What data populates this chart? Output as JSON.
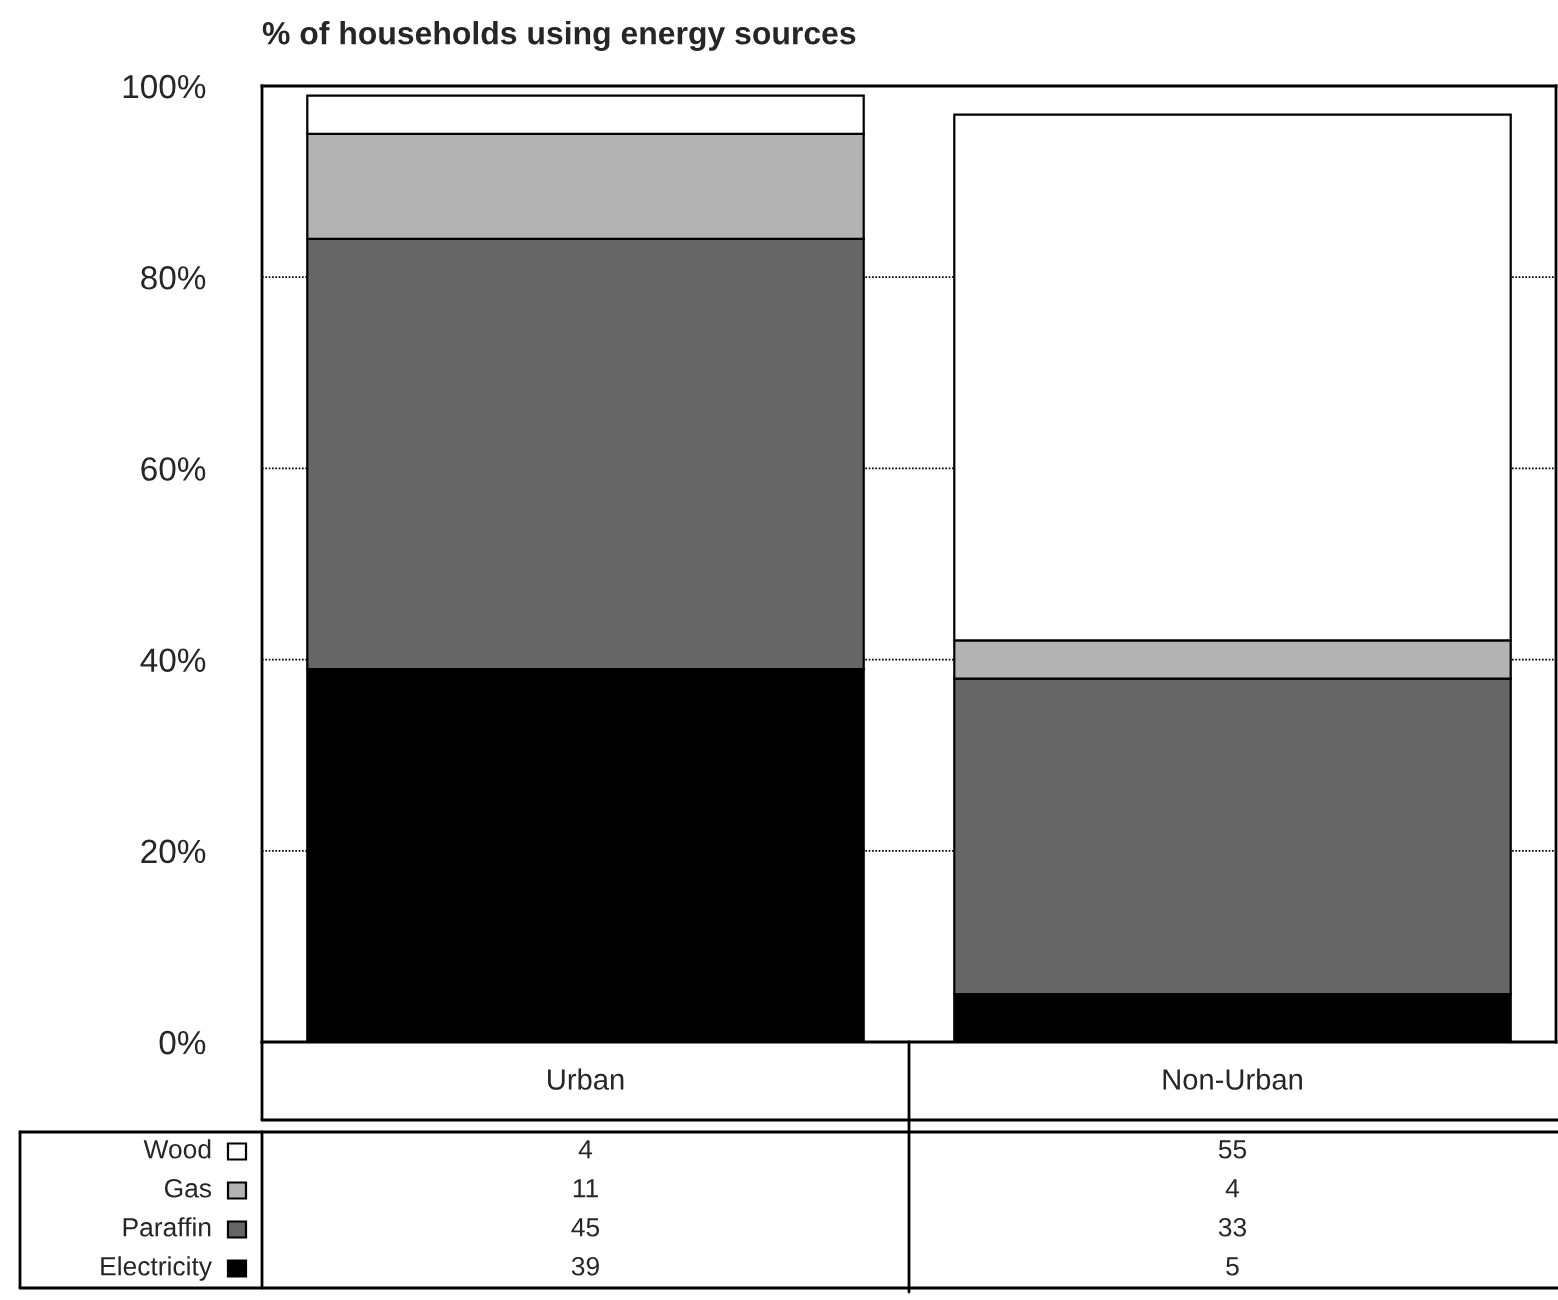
{
  "chart_data": {
    "type": "bar",
    "title": "% of households using energy sources",
    "stacked": true,
    "categories": [
      "Urban",
      "Non-Urban"
    ],
    "series": [
      {
        "name": "Electricity",
        "color": "#000000",
        "values": [
          39,
          5
        ]
      },
      {
        "name": "Paraffin",
        "color": "#666666",
        "values": [
          45,
          33
        ]
      },
      {
        "name": "Gas",
        "color": "#b3b3b3",
        "values": [
          11,
          4
        ]
      },
      {
        "name": "Wood",
        "color": "#ffffff",
        "values": [
          4,
          55
        ]
      }
    ],
    "ylim": [
      0,
      100
    ],
    "yticks": [
      {
        "value": 0,
        "label": "0%"
      },
      {
        "value": 20,
        "label": "20%"
      },
      {
        "value": 40,
        "label": "40%"
      },
      {
        "value": 60,
        "label": "60%"
      },
      {
        "value": 80,
        "label": "80%"
      },
      {
        "value": 100,
        "label": "100%"
      }
    ],
    "grid": "y",
    "data_labels": true,
    "legend": "bottom left"
  }
}
